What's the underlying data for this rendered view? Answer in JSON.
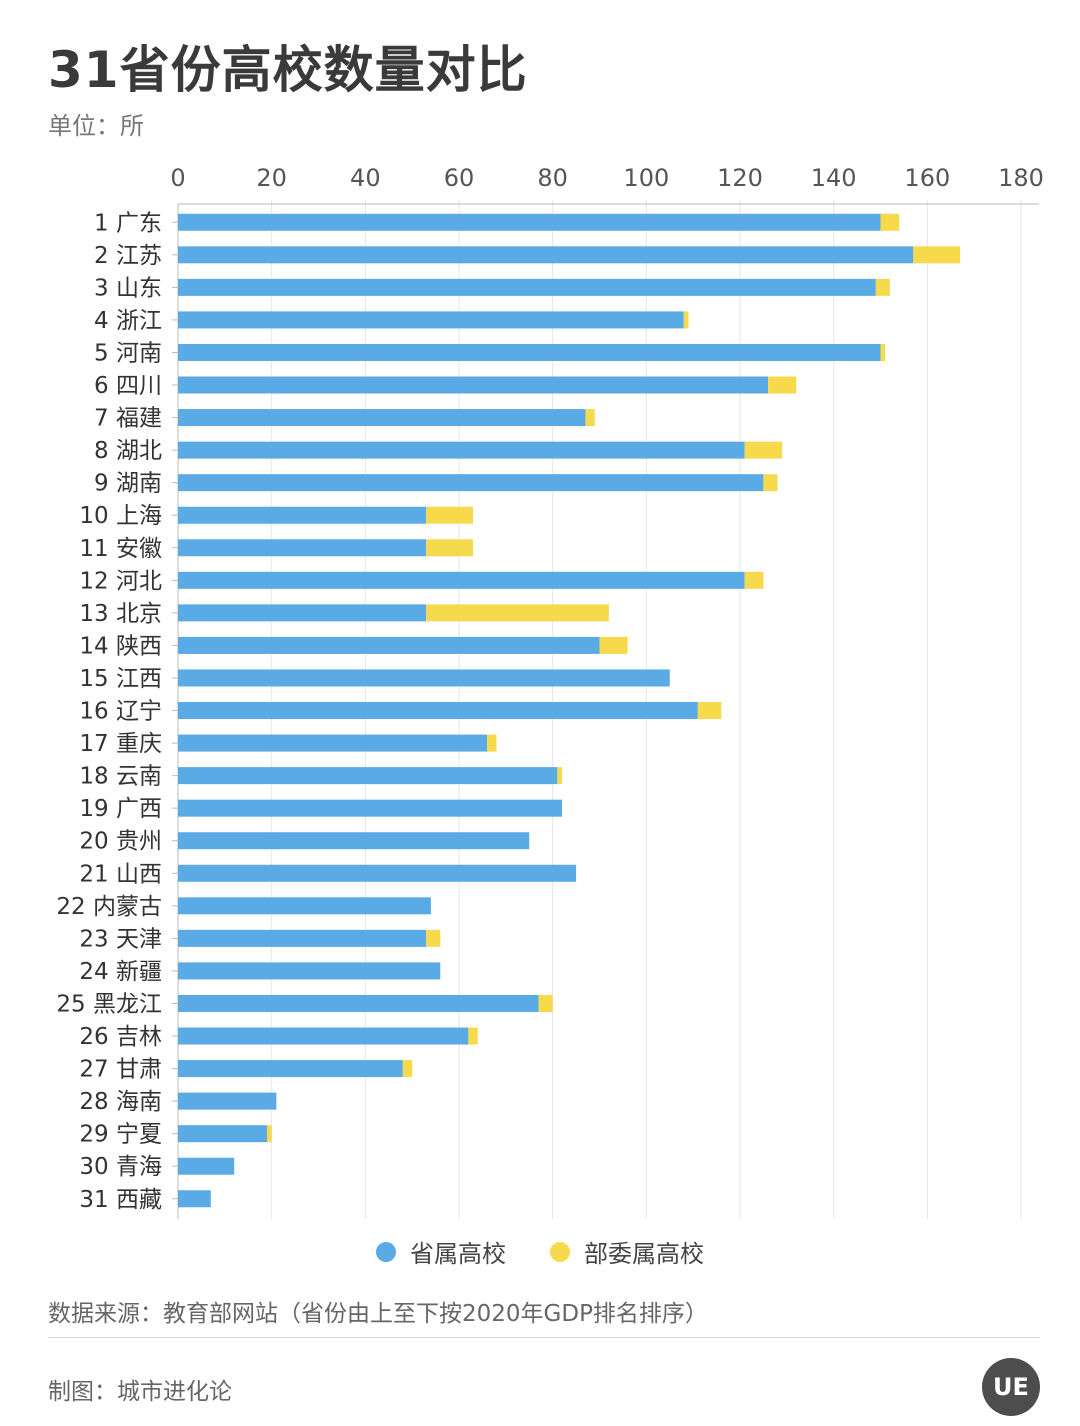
{
  "header": {
    "title": "31省份高校数量对比",
    "unit": "单位：所"
  },
  "footer": {
    "source": "数据来源：教育部网站（省份由上至下按2020年GDP排名排序）",
    "credit": "制图：城市进化论",
    "logo_text": "UE"
  },
  "colors": {
    "provincial": "#5aaae6",
    "ministry": "#f7d94c",
    "grid": "#e6e6e6",
    "axis": "#bbbbbb"
  },
  "chart_data": {
    "type": "bar",
    "orientation": "horizontal",
    "stacked": true,
    "xlim": [
      0,
      180
    ],
    "x_ticks": [
      0,
      20,
      40,
      60,
      80,
      100,
      120,
      140,
      160,
      180
    ],
    "grid": true,
    "legend_position": "bottom",
    "categories": [
      "1 广东",
      "2 江苏",
      "3 山东",
      "4 浙江",
      "5 河南",
      "6 四川",
      "7 福建",
      "8 湖北",
      "9 湖南",
      "10 上海",
      "11 安徽",
      "12 河北",
      "13 北京",
      "14 陕西",
      "15 江西",
      "16 辽宁",
      "17 重庆",
      "18 云南",
      "19 广西",
      "20 贵州",
      "21 山西",
      "22 内蒙古",
      "23 天津",
      "24 新疆",
      "25 黑龙江",
      "26 吉林",
      "27 甘肃",
      "28 海南",
      "29 宁夏",
      "30 青海",
      "31 西藏"
    ],
    "series": [
      {
        "name": "省属高校",
        "values": [
          150,
          157,
          149,
          108,
          150,
          126,
          87,
          121,
          125,
          53,
          53,
          121,
          53,
          90,
          105,
          111,
          66,
          81,
          82,
          75,
          85,
          54,
          53,
          56,
          77,
          62,
          48,
          21,
          19,
          12,
          7
        ]
      },
      {
        "name": "部委属高校",
        "values": [
          4,
          10,
          3,
          1,
          1,
          6,
          2,
          8,
          3,
          10,
          10,
          4,
          39,
          6,
          0,
          5,
          2,
          1,
          0,
          0,
          0,
          0,
          3,
          0,
          3,
          2,
          2,
          0,
          1,
          0,
          0
        ]
      }
    ]
  }
}
